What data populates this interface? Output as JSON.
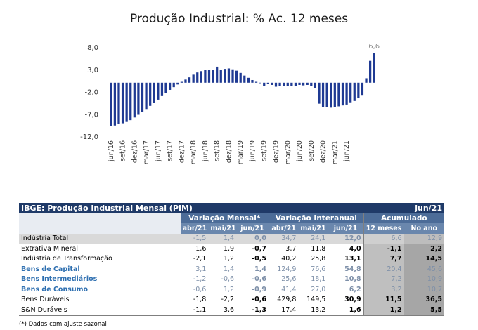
{
  "chart_data": {
    "type": "bar",
    "title": "Produção Industrial: % Ac. 12 meses",
    "yticks": [
      "8,0",
      "3,0",
      "-2,0",
      "-7,0",
      "-12,0"
    ],
    "ylim": [
      -12,
      8
    ],
    "xtick_labels": [
      "jun/16",
      "set/16",
      "dez/16",
      "mar/17",
      "jun/17",
      "set/17",
      "dez/17",
      "mar/18",
      "jun/18",
      "set/18",
      "dez/18",
      "mar/19",
      "jun/19",
      "set/19",
      "dez/19",
      "mar/20",
      "jun/20",
      "set/20",
      "dez/20",
      "mar/21",
      "jun/21"
    ],
    "last_value_label": "6,6",
    "values": [
      -9.7,
      -9.6,
      -9.3,
      -9.1,
      -8.8,
      -8.4,
      -7.8,
      -7.2,
      -6.6,
      -5.9,
      -5.2,
      -4.5,
      -3.8,
      -3.0,
      -2.3,
      -1.6,
      -1.0,
      -0.4,
      0.2,
      0.7,
      1.2,
      1.8,
      2.3,
      2.6,
      2.8,
      2.9,
      2.8,
      3.6,
      2.9,
      3.1,
      3.2,
      3.0,
      2.7,
      2.2,
      1.6,
      1.1,
      0.6,
      0.2,
      -0.1,
      -0.7,
      -0.3,
      -0.5,
      -0.9,
      -0.8,
      -0.7,
      -0.8,
      -0.7,
      -0.7,
      -0.5,
      -0.6,
      -0.5,
      -0.7,
      -1.2,
      -4.7,
      -5.4,
      -5.5,
      -5.6,
      -5.5,
      -5.3,
      -5.1,
      -4.9,
      -4.4,
      -4.1,
      -3.5,
      -2.9,
      1.0,
      4.9,
      6.6
    ]
  },
  "table": {
    "title": "IBGE: Produção Industrial Mensal (PIM)",
    "period": "jun/21",
    "groups": [
      "Variação Mensal*",
      "Variação Interanual",
      "Acumulado"
    ],
    "subheaders": [
      "abr/21",
      "mai/21",
      "jun/21",
      "abr/21",
      "mai/21",
      "jun/21",
      "12 meses",
      "No ano"
    ],
    "rows": [
      {
        "label": "Indústria Total",
        "values": [
          "-1,5",
          "1,4",
          "0,0",
          "34,7",
          "24,1",
          "12,0",
          "6,6",
          "12,9"
        ]
      },
      {
        "label": "Extrativa Mineral",
        "values": [
          "1,6",
          "1,9",
          "-0,7",
          "3,7",
          "11,8",
          "4,0",
          "-1,1",
          "2,2"
        ]
      },
      {
        "label": "Indústria de Transformação",
        "values": [
          "-2,1",
          "1,2",
          "-0,5",
          "40,2",
          "25,8",
          "13,1",
          "7,7",
          "14,5"
        ]
      },
      {
        "label": "Bens de Capital",
        "values": [
          "3,1",
          "1,4",
          "1,4",
          "124,9",
          "76,6",
          "54,8",
          "20,4",
          "45,6"
        ]
      },
      {
        "label": "Bens Intermediários",
        "values": [
          "-1,2",
          "-0,6",
          "-0,6",
          "25,6",
          "18,1",
          "10,8",
          "7,2",
          "10,9"
        ]
      },
      {
        "label": "Bens de Consumo",
        "values": [
          "-0,6",
          "1,2",
          "-0,9",
          "41,4",
          "27,0",
          "6,2",
          "3,2",
          "10,7"
        ]
      },
      {
        "label": "Bens Duráveis",
        "values": [
          "-1,8",
          "-2,2",
          "-0,6",
          "429,8",
          "149,5",
          "30,9",
          "11,5",
          "36,5"
        ]
      },
      {
        "label": "S&N Duráveis",
        "values": [
          "-1,1",
          "3,6",
          "-1,3",
          "17,4",
          "13,2",
          "1,6",
          "1,2",
          "5,5"
        ]
      }
    ],
    "footnote": "(*) Dados com ajuste sazonal"
  },
  "colors": {
    "bar": "#1f3a93",
    "header_dark": "#1f3a68",
    "header_mid": "#4c6c98",
    "category_blue": "#2e6fb0"
  }
}
